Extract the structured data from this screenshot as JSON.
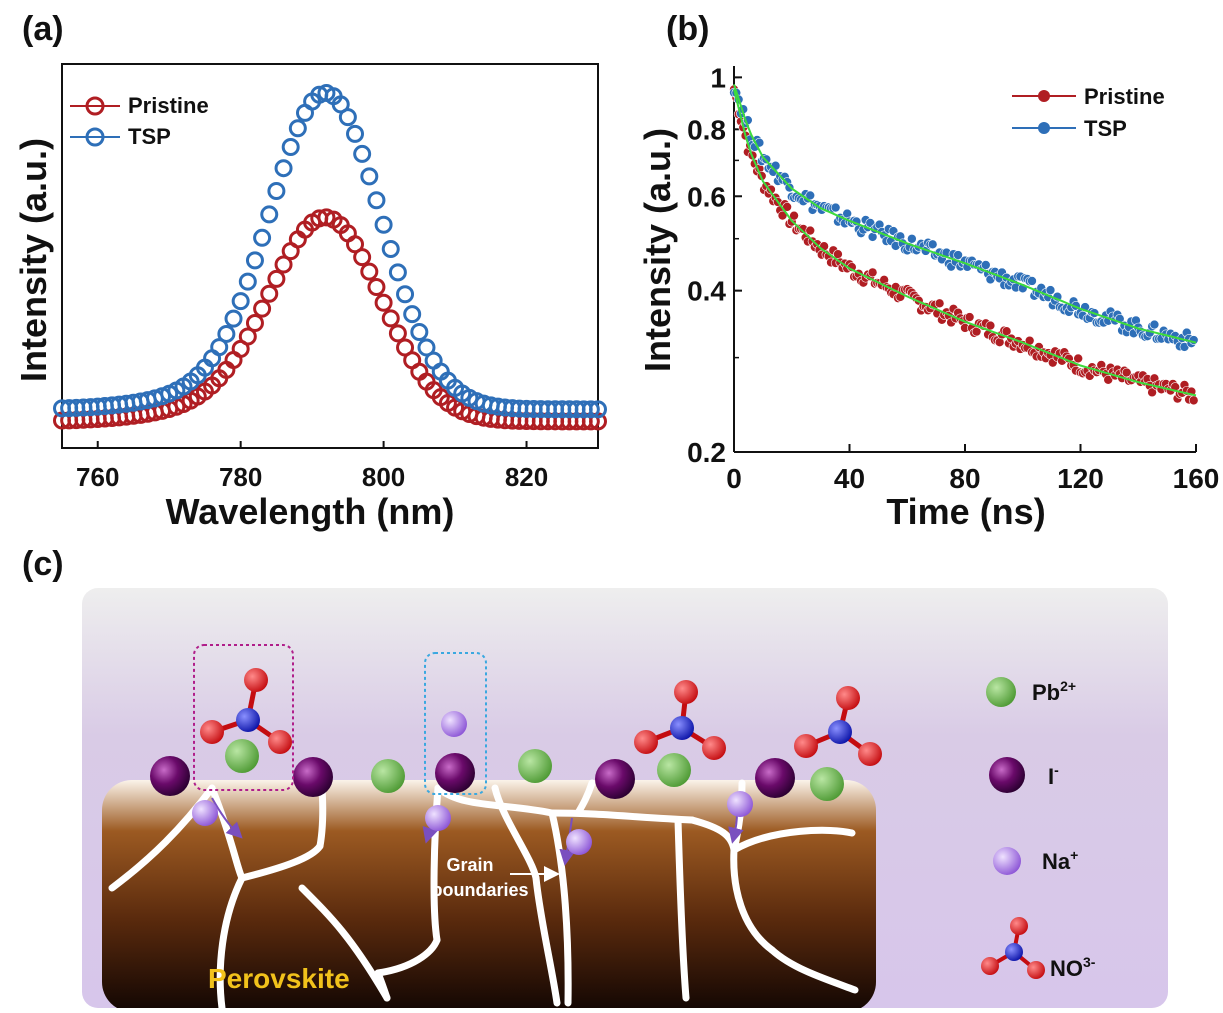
{
  "panel_labels": {
    "a": "(a)",
    "b": "(b)",
    "c": "(c)"
  },
  "colors": {
    "pristine": "#b01e23",
    "tsp": "#2e6fb8",
    "fit": "#3ddb3d",
    "perovskite_text": "#f2c21b",
    "pb": "#66b04a",
    "iodide": "#6a0a6a",
    "sodium": "#a66fe6",
    "nitrogen": "#1a24c8",
    "oxygen": "#e0151a"
  },
  "chart_data": [
    {
      "type": "scatter",
      "title": "",
      "xlabel": "Wavelength (nm)",
      "ylabel": "Intensity (a.u.)",
      "xlim": [
        755,
        830
      ],
      "xticks": [
        760,
        780,
        800,
        820
      ],
      "yticks": [],
      "legend": "top-left",
      "series": [
        {
          "name": "Pristine",
          "color": "#b01e23",
          "peak_x": 792,
          "peak_y": 0.64,
          "width": 11,
          "baseline": 0.06,
          "shoulder": 0.035
        },
        {
          "name": "TSP",
          "color": "#2e6fb8",
          "peak_x": 792,
          "peak_y": 1.0,
          "width": 11,
          "baseline": 0.095,
          "shoulder": 0.04
        }
      ]
    },
    {
      "type": "scatter",
      "title": "",
      "xlabel": "Time (ns)",
      "ylabel": "Intensity (a.u.)",
      "xlim": [
        0,
        160
      ],
      "ylim": [
        0.2,
        1.05
      ],
      "yscale": "log",
      "xticks": [
        0,
        40,
        80,
        120,
        160
      ],
      "yticks": [
        0.2,
        0.4,
        0.6,
        0.8,
        1
      ],
      "ytick_labels": [
        "0.2",
        "0.4",
        "0.6",
        "0.8",
        "1"
      ],
      "legend": "top-right",
      "series": [
        {
          "name": "Pristine",
          "color": "#b01e23",
          "x": [
            0,
            5,
            10,
            20,
            30,
            40,
            60,
            80,
            100,
            120,
            140,
            160
          ],
          "y": [
            0.95,
            0.74,
            0.64,
            0.54,
            0.48,
            0.44,
            0.39,
            0.35,
            0.32,
            0.29,
            0.27,
            0.255
          ]
        },
        {
          "name": "TSP",
          "color": "#2e6fb8",
          "x": [
            0,
            5,
            10,
            20,
            30,
            40,
            60,
            80,
            100,
            120,
            140,
            160
          ],
          "y": [
            0.97,
            0.8,
            0.71,
            0.62,
            0.57,
            0.54,
            0.49,
            0.45,
            0.41,
            0.37,
            0.34,
            0.32
          ]
        }
      ]
    }
  ],
  "scheme": {
    "perovskite_label": "Perovskite",
    "grain_label_line1": "Grain",
    "grain_label_line2": "boundaries",
    "legend": [
      {
        "key": "pb",
        "base": "Pb",
        "sup": "2+"
      },
      {
        "key": "iodide",
        "base": "I",
        "sup": "-"
      },
      {
        "key": "sodium",
        "base": "Na",
        "sup": "+"
      },
      {
        "key": "nitrate",
        "base": "NO",
        "sup": "3-"
      }
    ]
  }
}
